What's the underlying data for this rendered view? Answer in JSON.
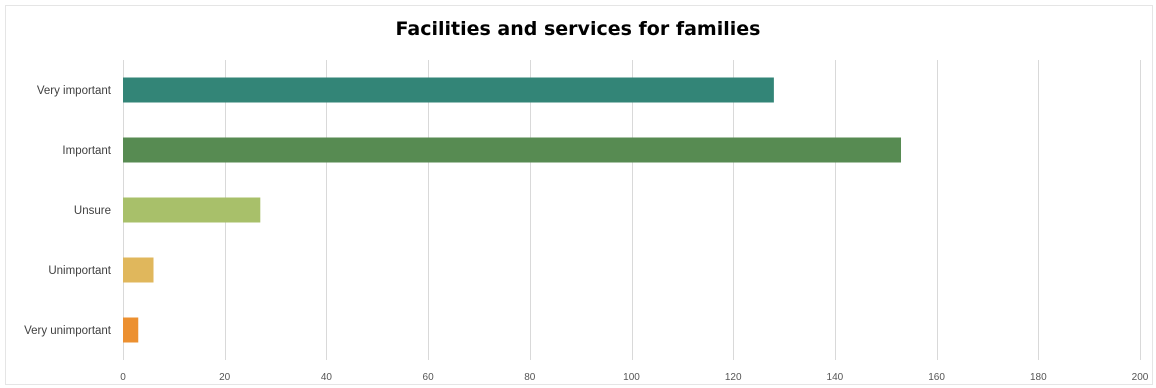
{
  "chart_data": {
    "type": "bar",
    "orientation": "horizontal",
    "title": "Facilities and services for families",
    "xlabel": "",
    "ylabel": "",
    "categories": [
      "Very important",
      "Important",
      "Unsure",
      "Unimportant",
      "Very unimportant"
    ],
    "values": [
      128,
      153,
      27,
      6,
      3
    ],
    "colors": [
      "#338577",
      "#578b52",
      "#a8c06a",
      "#e0b75c",
      "#ec9030"
    ],
    "xlim": [
      0,
      200
    ],
    "xticks": [
      0,
      20,
      40,
      60,
      80,
      100,
      120,
      140,
      160,
      180,
      200
    ],
    "grid": true,
    "legend": "none"
  }
}
